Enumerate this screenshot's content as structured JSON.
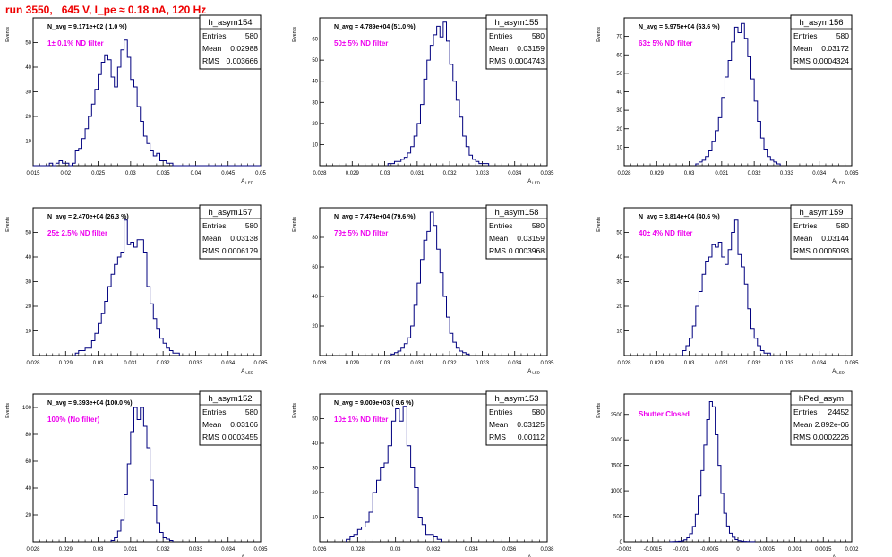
{
  "page": {
    "title": "run 3550,   645 V, I_pe ≈ 0.18 nA, 120 Hz"
  },
  "colors": {
    "histogram": "#00007f",
    "annotation": "#ee00ee",
    "title": "#ee0000"
  },
  "chart_data": [
    {
      "type": "bar",
      "name": "h_asym154",
      "ylabel": "Events",
      "xlabel": "A_LED",
      "n_avg_label": "N_avg = 9.171e+02 ( 1.0 %)",
      "filter_label": "1± 0.1% ND filter",
      "stats": {
        "Entries": "580",
        "Mean": "0.02988",
        "RMS": "0.003666"
      },
      "xlim": [
        0.015,
        0.05
      ],
      "ylim": [
        0,
        60
      ],
      "xticks": [
        0.015,
        0.02,
        0.025,
        0.03,
        0.035,
        0.04,
        0.045,
        0.05
      ],
      "xticklabels": [
        "0.015",
        "0.02",
        "0.025",
        "0.03",
        "0.035",
        "0.04",
        "0.045",
        "0.05"
      ],
      "yticks": [
        0,
        10,
        20,
        30,
        40,
        50,
        60
      ],
      "yticklabels": [
        "",
        "10",
        "20",
        "30",
        "40",
        "50",
        ""
      ],
      "bin_start": 0.015,
      "bin_width": 0.0005,
      "values": [
        0,
        0,
        0,
        0,
        0,
        1,
        0,
        1,
        2,
        1,
        1,
        0,
        1,
        6,
        7,
        11,
        15,
        20,
        25,
        31,
        37,
        42,
        45,
        43,
        36,
        32,
        40,
        47,
        51,
        44,
        35,
        32,
        24,
        18,
        12,
        9,
        6,
        4,
        5,
        2,
        2,
        1,
        1,
        0,
        0,
        0,
        0,
        0,
        0,
        0,
        0,
        0,
        0,
        0,
        0,
        0,
        0,
        0,
        0,
        0,
        0,
        0,
        0,
        0,
        0,
        0,
        0,
        0,
        0,
        0
      ]
    },
    {
      "type": "bar",
      "name": "h_asym155",
      "ylabel": "Events",
      "xlabel": "A_LED",
      "n_avg_label": "N_avg = 4.789e+04 (51.0 %)",
      "filter_label": "50± 5% ND filter",
      "stats": {
        "Entries": "580",
        "Mean": "0.03159",
        "RMS": "0.0004743"
      },
      "xlim": [
        0.028,
        0.035
      ],
      "ylim": [
        0,
        70
      ],
      "xticks": [
        0.028,
        0.029,
        0.03,
        0.031,
        0.032,
        0.033,
        0.034,
        0.035
      ],
      "xticklabels": [
        "0.028",
        "0.029",
        "0.03",
        "0.031",
        "0.032",
        "0.033",
        "0.034",
        "0.035"
      ],
      "yticks": [
        0,
        10,
        20,
        30,
        40,
        50,
        60,
        70
      ],
      "yticklabels": [
        "",
        "10",
        "20",
        "30",
        "40",
        "50",
        "60",
        ""
      ],
      "bin_start": 0.0301,
      "bin_width": 0.0001,
      "values": [
        1,
        1,
        2,
        2,
        3,
        4,
        6,
        9,
        14,
        20,
        29,
        41,
        50,
        57,
        62,
        66,
        61,
        68,
        59,
        48,
        40,
        31,
        23,
        14,
        9,
        5,
        3,
        2,
        1,
        1,
        1
      ]
    },
    {
      "type": "bar",
      "name": "h_asym156",
      "ylabel": "Events",
      "xlabel": "A_LED",
      "n_avg_label": "N_avg = 5.975e+04 (63.6 %)",
      "filter_label": "63± 5% ND filter",
      "stats": {
        "Entries": "580",
        "Mean": "0.03172",
        "RMS": "0.0004324"
      },
      "xlim": [
        0.028,
        0.035
      ],
      "ylim": [
        0,
        80
      ],
      "xticks": [
        0.028,
        0.029,
        0.03,
        0.031,
        0.032,
        0.033,
        0.034,
        0.035
      ],
      "xticklabels": [
        "0.028",
        "0.029",
        "0.03",
        "0.031",
        "0.032",
        "0.033",
        "0.034",
        "0.035"
      ],
      "yticks": [
        0,
        10,
        20,
        30,
        40,
        50,
        60,
        70,
        80
      ],
      "yticklabels": [
        "",
        "10",
        "20",
        "30",
        "40",
        "50",
        "60",
        "70",
        ""
      ],
      "bin_start": 0.0302,
      "bin_width": 0.0001,
      "values": [
        1,
        2,
        3,
        5,
        8,
        13,
        19,
        26,
        37,
        48,
        57,
        67,
        75,
        72,
        77,
        69,
        59,
        47,
        35,
        24,
        15,
        9,
        5,
        3,
        2,
        1
      ]
    },
    {
      "type": "bar",
      "name": "h_asym157",
      "ylabel": "Events",
      "xlabel": "A_LED",
      "n_avg_label": "N_avg = 2.470e+04 (26.3 %)",
      "filter_label": "25± 2.5% ND filter",
      "stats": {
        "Entries": "580",
        "Mean": "0.03138",
        "RMS": "0.0006179"
      },
      "xlim": [
        0.028,
        0.035
      ],
      "ylim": [
        0,
        60
      ],
      "xticks": [
        0.028,
        0.029,
        0.03,
        0.031,
        0.032,
        0.033,
        0.034,
        0.035
      ],
      "xticklabels": [
        "0.028",
        "0.029",
        "0.03",
        "0.031",
        "0.032",
        "0.033",
        "0.034",
        "0.035"
      ],
      "yticks": [
        0,
        10,
        20,
        30,
        40,
        50,
        60
      ],
      "yticklabels": [
        "",
        "10",
        "20",
        "30",
        "40",
        "50",
        ""
      ],
      "bin_start": 0.0293,
      "bin_width": 0.0001,
      "values": [
        1,
        2,
        2,
        3,
        3,
        6,
        9,
        13,
        17,
        22,
        28,
        33,
        37,
        40,
        42,
        55,
        45,
        46,
        44,
        47,
        47,
        42,
        28,
        21,
        15,
        11,
        7,
        5,
        3,
        2,
        1,
        1
      ]
    },
    {
      "type": "bar",
      "name": "h_asym158",
      "ylabel": "Events",
      "xlabel": "A_LED",
      "n_avg_label": "N_avg = 7.474e+04 (79.6 %)",
      "filter_label": "79± 5% ND filter",
      "stats": {
        "Entries": "580",
        "Mean": "0.03159",
        "RMS": "0.0003968"
      },
      "xlim": [
        0.028,
        0.035
      ],
      "ylim": [
        0,
        100
      ],
      "xticks": [
        0.028,
        0.029,
        0.03,
        0.031,
        0.032,
        0.033,
        0.034,
        0.035
      ],
      "xticklabels": [
        "0.028",
        "0.029",
        "0.03",
        "0.031",
        "0.032",
        "0.033",
        "0.034",
        "0.035"
      ],
      "yticks": [
        0,
        20,
        40,
        60,
        80,
        100
      ],
      "yticklabels": [
        "",
        "20",
        "40",
        "60",
        "80",
        ""
      ],
      "bin_start": 0.0302,
      "bin_width": 0.0001,
      "values": [
        1,
        2,
        3,
        5,
        8,
        12,
        20,
        34,
        49,
        65,
        78,
        84,
        97,
        88,
        72,
        56,
        40,
        26,
        15,
        9,
        5,
        3,
        2,
        1
      ]
    },
    {
      "type": "bar",
      "name": "h_asym159",
      "ylabel": "Events",
      "xlabel": "A_LED",
      "n_avg_label": "N_avg = 3.814e+04 (40.6 %)",
      "filter_label": "40± 4% ND filter",
      "stats": {
        "Entries": "580",
        "Mean": "0.03144",
        "RMS": "0.0005093"
      },
      "xlim": [
        0.028,
        0.035
      ],
      "ylim": [
        0,
        60
      ],
      "xticks": [
        0.028,
        0.029,
        0.03,
        0.031,
        0.032,
        0.033,
        0.034,
        0.035
      ],
      "xticklabels": [
        "0.028",
        "0.029",
        "0.03",
        "0.031",
        "0.032",
        "0.033",
        "0.034",
        "0.035"
      ],
      "yticks": [
        0,
        10,
        20,
        30,
        40,
        50,
        60
      ],
      "yticklabels": [
        "",
        "10",
        "20",
        "30",
        "40",
        "50",
        ""
      ],
      "bin_start": 0.0298,
      "bin_width": 0.0001,
      "values": [
        2,
        4,
        7,
        12,
        20,
        26,
        33,
        38,
        40,
        45,
        44,
        46,
        40,
        37,
        43,
        50,
        55,
        41,
        36,
        29,
        19,
        11,
        7,
        4,
        2,
        1,
        1
      ]
    },
    {
      "type": "bar",
      "name": "h_asym152",
      "ylabel": "Events",
      "xlabel": "A_LED",
      "n_avg_label": "N_avg = 9.393e+04 (100.0 %)",
      "filter_label": "100% (No filter)",
      "stats": {
        "Entries": "580",
        "Mean": "0.03166",
        "RMS": "0.0003455"
      },
      "xlim": [
        0.028,
        0.035
      ],
      "ylim": [
        0,
        110
      ],
      "xticks": [
        0.028,
        0.029,
        0.03,
        0.031,
        0.032,
        0.033,
        0.034,
        0.035
      ],
      "xticklabels": [
        "0.028",
        "0.029",
        "0.03",
        "0.031",
        "0.032",
        "0.033",
        "0.034",
        "0.035"
      ],
      "yticks": [
        0,
        20,
        40,
        60,
        80,
        100
      ],
      "yticklabels": [
        "",
        "20",
        "40",
        "60",
        "80",
        "100"
      ],
      "bin_start": 0.0304,
      "bin_width": 0.0001,
      "values": [
        1,
        3,
        8,
        16,
        35,
        58,
        82,
        100,
        91,
        100,
        86,
        70,
        46,
        27,
        14,
        7,
        3,
        2,
        1
      ]
    },
    {
      "type": "bar",
      "name": "h_asym153",
      "ylabel": "Events",
      "xlabel": "A_LED",
      "n_avg_label": "N_avg = 9.009e+03 ( 9.6 %)",
      "filter_label": "10± 1% ND filter",
      "stats": {
        "Entries": "580",
        "Mean": "0.03125",
        "RMS": "0.00112"
      },
      "xlim": [
        0.026,
        0.038
      ],
      "ylim": [
        0,
        60
      ],
      "xticks": [
        0.026,
        0.028,
        0.03,
        0.032,
        0.034,
        0.036,
        0.038
      ],
      "xticklabels": [
        "0.026",
        "0.028",
        "0.03",
        "0.032",
        "0.034",
        "0.036",
        "0.038"
      ],
      "yticks": [
        0,
        10,
        20,
        30,
        40,
        50,
        60
      ],
      "yticklabels": [
        "",
        "10",
        "20",
        "30",
        "40",
        "50",
        ""
      ],
      "bin_start": 0.0274,
      "bin_width": 0.0002,
      "values": [
        1,
        2,
        3,
        5,
        6,
        8,
        12,
        20,
        25,
        30,
        32,
        39,
        49,
        54,
        49,
        55,
        39,
        30,
        22,
        10,
        7,
        3,
        3,
        2,
        1
      ]
    },
    {
      "type": "bar",
      "name": "hPed_asym",
      "ylabel": "Events",
      "xlabel": "A_LED",
      "n_avg_label": "",
      "filter_label": "Shutter Closed",
      "stats": {
        "Entries": "24452",
        "Mean": "2.892e-06",
        "RMS": "0.0002226"
      },
      "xlim": [
        -0.002,
        0.002
      ],
      "ylim": [
        0,
        2900
      ],
      "xticks": [
        -0.002,
        -0.0015,
        -0.001,
        -0.0005,
        0,
        0.0005,
        0.001,
        0.0015,
        0.002
      ],
      "xticklabels": [
        "-0.002",
        "-0.0015",
        "-0.001",
        "-0.0005",
        "0",
        "0.0005",
        "0.001",
        "0.0015",
        "0.002"
      ],
      "yticks": [
        0,
        500,
        1000,
        1500,
        2000,
        2500
      ],
      "yticklabels": [
        "0",
        "500",
        "1000",
        "1500",
        "2000",
        "2500"
      ],
      "bin_start": -0.0012,
      "bin_width": 5e-05,
      "values": [
        3,
        4,
        6,
        10,
        20,
        40,
        80,
        160,
        300,
        540,
        900,
        1400,
        1900,
        2400,
        2750,
        2650,
        2100,
        1500,
        950,
        560,
        310,
        170,
        90,
        45,
        22,
        12,
        7,
        4,
        3,
        2
      ]
    }
  ]
}
